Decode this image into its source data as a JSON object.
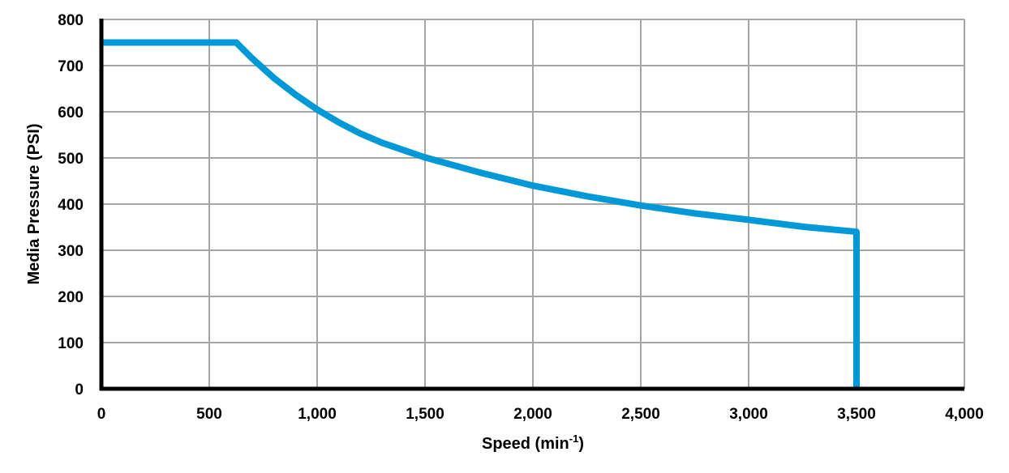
{
  "chart_data": {
    "type": "line",
    "title": "",
    "xlabel": "Speed (min-1)",
    "xlabel_base": "Speed (min",
    "xlabel_sup": "-1",
    "xlabel_close": ")",
    "ylabel": "Media Pressure (PSI)",
    "xlim": [
      0,
      4000
    ],
    "ylim": [
      0,
      800
    ],
    "grid": true,
    "legend": null,
    "x_ticks": [
      0,
      500,
      1000,
      1500,
      2000,
      2500,
      3000,
      3500,
      4000
    ],
    "x_tick_labels": [
      "0",
      "500",
      "1,000",
      "1,500",
      "2,000",
      "2,500",
      "3,000",
      "3,500",
      "4,000"
    ],
    "y_ticks": [
      0,
      100,
      200,
      300,
      400,
      500,
      600,
      700,
      800
    ],
    "y_tick_labels": [
      "0",
      "100",
      "200",
      "300",
      "400",
      "500",
      "600",
      "700",
      "800"
    ],
    "series": [
      {
        "name": "Media Pressure",
        "color": "#0099d8",
        "x": [
          0,
          625,
          700,
          800,
          900,
          1000,
          1100,
          1200,
          1300,
          1500,
          1750,
          2000,
          2250,
          2500,
          2750,
          3000,
          3250,
          3500,
          3500
        ],
        "y": [
          750,
          750,
          715,
          673,
          637,
          605,
          577,
          553,
          533,
          501,
          469,
          440,
          417,
          397,
          380,
          366,
          351,
          340,
          0
        ]
      }
    ]
  }
}
